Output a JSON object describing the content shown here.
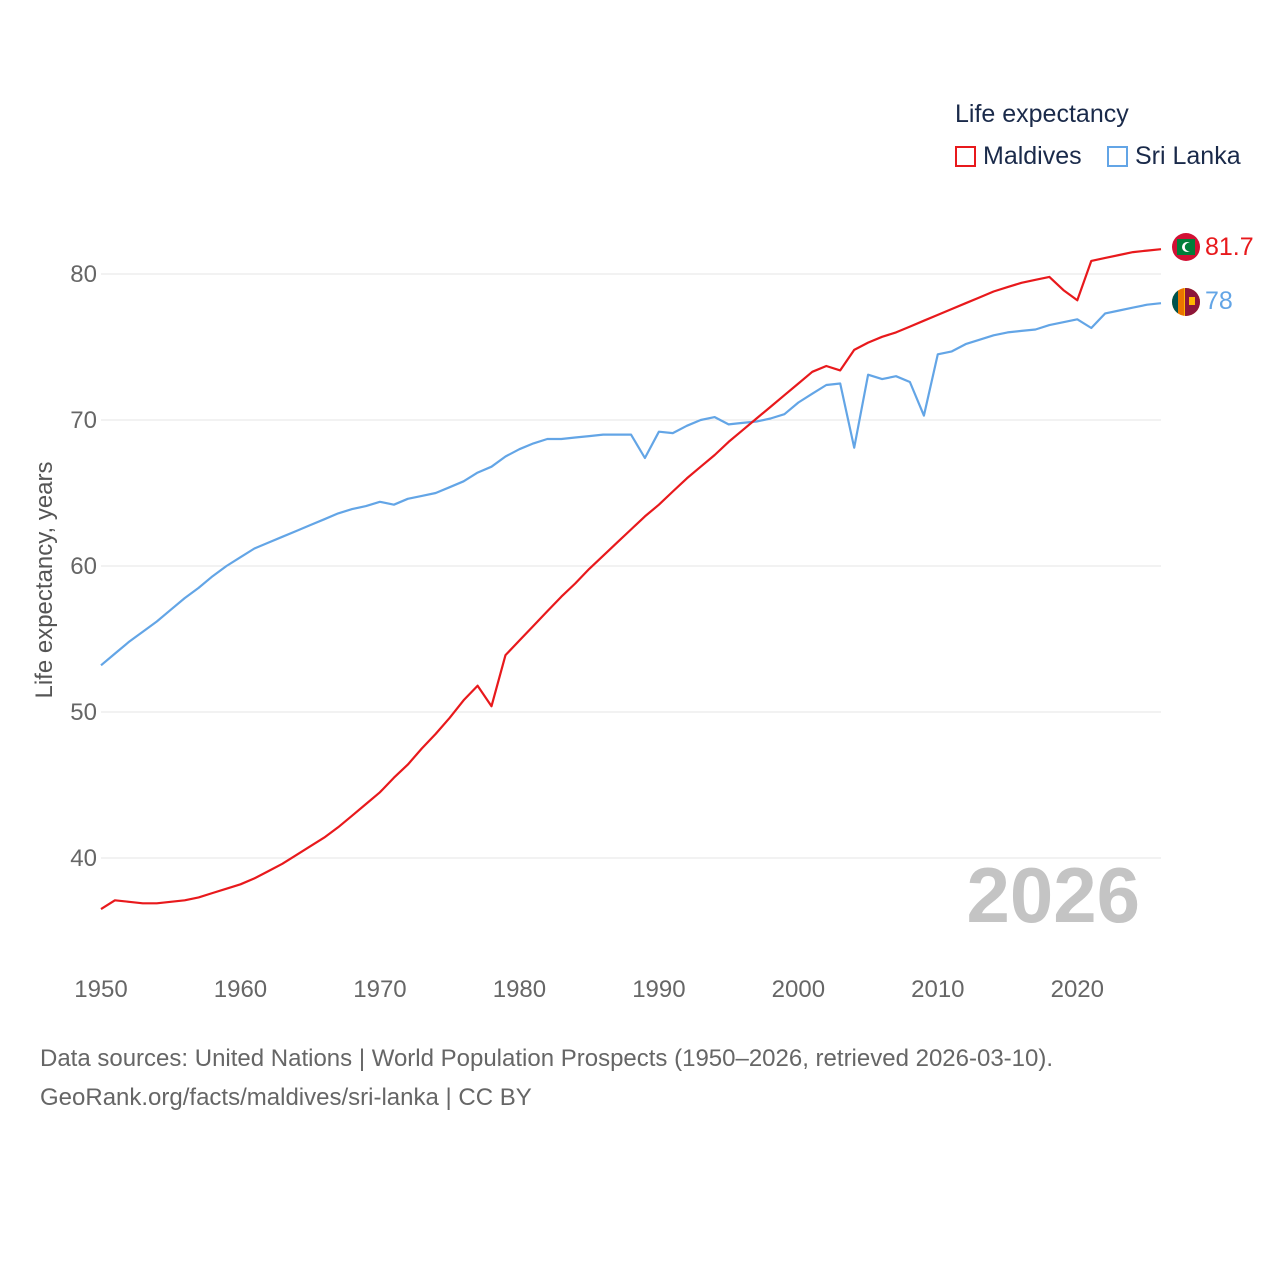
{
  "legend": {
    "title": "Life expectancy",
    "items": [
      {
        "name": "Maldives",
        "color": "#e8191c"
      },
      {
        "name": "Sri Lanka",
        "color": "#63a5e6"
      }
    ]
  },
  "year_watermark": "2026",
  "footer": {
    "line1": "Data sources: United Nations | World Population Prospects (1950–2026, retrieved 2026-03-10).",
    "line2": "GeoRank.org/facts/maldives/sri-lanka | CC BY"
  },
  "end_labels": [
    {
      "series": "Maldives",
      "text": "81.7",
      "flag_icon": "maldives-flag-icon"
    },
    {
      "series": "Sri Lanka",
      "text": "78",
      "flag_icon": "sri-lanka-flag-icon"
    }
  ],
  "chart_data": {
    "type": "line",
    "title": "Life expectancy",
    "xlabel": "",
    "ylabel": "Life expectancy, years",
    "xlim": [
      1950,
      2026
    ],
    "ylim": [
      35,
      85
    ],
    "x_ticks": [
      1950,
      1960,
      1970,
      1980,
      1990,
      2000,
      2010,
      2020
    ],
    "y_ticks": [
      40,
      50,
      60,
      70,
      80
    ],
    "grid": true,
    "legend_position": "top-right",
    "x": [
      1950,
      1951,
      1952,
      1953,
      1954,
      1955,
      1956,
      1957,
      1958,
      1959,
      1960,
      1961,
      1962,
      1963,
      1964,
      1965,
      1966,
      1967,
      1968,
      1969,
      1970,
      1971,
      1972,
      1973,
      1974,
      1975,
      1976,
      1977,
      1978,
      1979,
      1980,
      1981,
      1982,
      1983,
      1984,
      1985,
      1986,
      1987,
      1988,
      1989,
      1990,
      1991,
      1992,
      1993,
      1994,
      1995,
      1996,
      1997,
      1998,
      1999,
      2000,
      2001,
      2002,
      2003,
      2004,
      2005,
      2006,
      2007,
      2008,
      2009,
      2010,
      2011,
      2012,
      2013,
      2014,
      2015,
      2016,
      2017,
      2018,
      2019,
      2020,
      2021,
      2022,
      2023,
      2024,
      2025,
      2026
    ],
    "series": [
      {
        "name": "Maldives",
        "color": "#e8191c",
        "values": [
          36.5,
          37.1,
          37.0,
          36.9,
          36.9,
          37.0,
          37.1,
          37.3,
          37.6,
          37.9,
          38.2,
          38.6,
          39.1,
          39.6,
          40.2,
          40.8,
          41.4,
          42.1,
          42.9,
          43.7,
          44.5,
          45.5,
          46.4,
          47.5,
          48.5,
          49.6,
          50.8,
          51.8,
          50.4,
          53.9,
          54.9,
          55.9,
          56.9,
          57.9,
          58.8,
          59.8,
          60.7,
          61.6,
          62.5,
          63.4,
          64.2,
          65.1,
          66.0,
          66.8,
          67.6,
          68.5,
          69.3,
          70.1,
          70.9,
          71.7,
          72.5,
          73.3,
          73.7,
          73.4,
          74.8,
          75.3,
          75.7,
          76.0,
          76.4,
          76.8,
          77.2,
          77.6,
          78.0,
          78.4,
          78.8,
          79.1,
          79.4,
          79.6,
          79.8,
          78.9,
          78.2,
          80.9,
          81.1,
          81.3,
          81.5,
          81.6,
          81.7
        ]
      },
      {
        "name": "Sri Lanka",
        "color": "#63a5e6",
        "values": [
          53.2,
          54.0,
          54.8,
          55.5,
          56.2,
          57.0,
          57.8,
          58.5,
          59.3,
          60.0,
          60.6,
          61.2,
          61.6,
          62.0,
          62.4,
          62.8,
          63.2,
          63.6,
          63.9,
          64.1,
          64.4,
          64.2,
          64.6,
          64.8,
          65.0,
          65.4,
          65.8,
          66.4,
          66.8,
          67.5,
          68.0,
          68.4,
          68.7,
          68.7,
          68.8,
          68.9,
          69.0,
          69.0,
          69.0,
          67.4,
          69.2,
          69.1,
          69.6,
          70.0,
          70.2,
          69.7,
          69.8,
          69.9,
          70.1,
          70.4,
          71.2,
          71.8,
          72.4,
          72.5,
          68.1,
          73.1,
          72.8,
          73.0,
          72.6,
          70.3,
          74.5,
          74.7,
          75.2,
          75.5,
          75.8,
          76.0,
          76.1,
          76.2,
          76.5,
          76.7,
          76.9,
          76.3,
          77.3,
          77.5,
          77.7,
          77.9,
          78.0
        ]
      }
    ]
  }
}
